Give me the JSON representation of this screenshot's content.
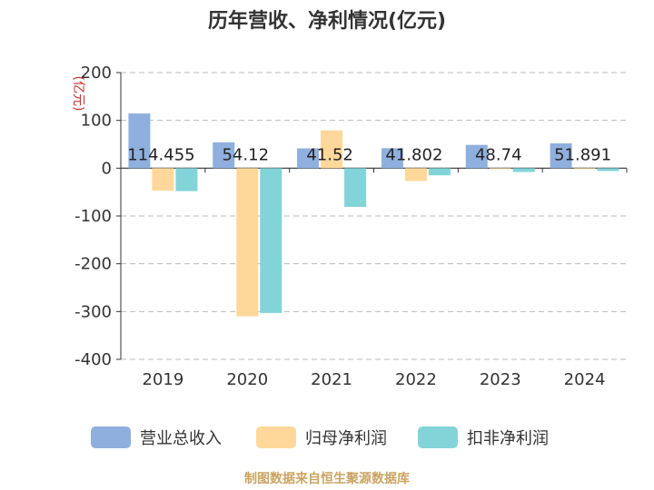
{
  "chart_data": {
    "type": "bar",
    "title": "历年营收、净利情况(亿元)",
    "ylabel": "(亿元)",
    "categories": [
      "2019",
      "2020",
      "2021",
      "2022",
      "2023",
      "2024"
    ],
    "series": [
      {
        "name": "营业总收入",
        "color": "#8fb0de",
        "values": [
          114.455,
          54.12,
          41.52,
          41.802,
          48.74,
          51.891
        ]
      },
      {
        "name": "归母净利润",
        "color": "#fdd89a",
        "values": [
          -47,
          -310,
          79,
          -27,
          -1,
          -1
        ]
      },
      {
        "name": "扣非净利润",
        "color": "#83d4d8",
        "values": [
          -48,
          -303,
          -81,
          -15,
          -8,
          -6
        ]
      }
    ],
    "data_labels": [
      "114.455",
      "54.12",
      "41.52",
      "41.802",
      "48.74",
      "51.891"
    ],
    "y_ticks": [
      "200",
      "100",
      "0",
      "-100",
      "-200",
      "-300",
      "-400"
    ],
    "ylim": [
      -400,
      200
    ],
    "grid": true,
    "legend_position": "bottom"
  },
  "footer": {
    "source": "制图数据来自恒生聚源数据库"
  }
}
